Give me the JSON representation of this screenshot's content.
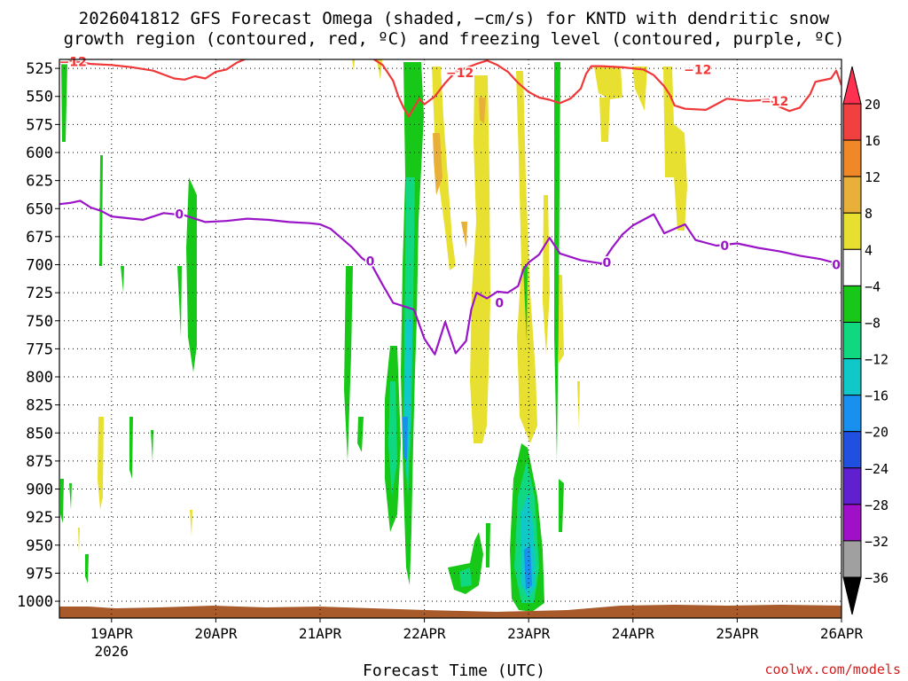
{
  "title": {
    "line1": "2026041812 GFS Forecast Omega (shaded, −cm/s) for KNTD with dendritic snow",
    "line2": "growth region (contoured, red, ºC) and freezing level (contoured, purple, ºC)"
  },
  "credit": "coolwx.com/models",
  "chart_data": {
    "type": "heatmap",
    "xlabel": "Forecast Time (UTC)",
    "ylabel": "",
    "x_ticks": [
      "19APR",
      "20APR",
      "21APR",
      "22APR",
      "23APR",
      "24APR",
      "25APR",
      "26APR"
    ],
    "x_sublabel": {
      "under": "19APR",
      "text": "2026"
    },
    "x_range_days": [
      18.5,
      26.0
    ],
    "y_ticks": [
      525,
      550,
      575,
      600,
      625,
      650,
      675,
      700,
      725,
      750,
      775,
      800,
      825,
      850,
      875,
      900,
      925,
      950,
      975,
      1000
    ],
    "y_range_hpa": [
      517,
      1015
    ],
    "grid": "dotted",
    "colorbar": {
      "labels": [
        "20",
        "16",
        "12",
        "8",
        "4",
        "−4",
        "−8",
        "−12",
        "−16",
        "−20",
        "−24",
        "−28",
        "−32",
        "−36"
      ],
      "colors": [
        "#ff3050",
        "#f04040",
        "#f08828",
        "#e8b038",
        "#e8e030",
        "#ffffff",
        "#18c818",
        "#10d880",
        "#10c8c8",
        "#1890f0",
        "#2050e0",
        "#6020d0",
        "#a010c8",
        "#a0a0a0",
        "#000000"
      ]
    },
    "series": [
      {
        "name": "dendritic snow growth region (-12 ºC)",
        "color": "#f03838",
        "contour_label": "−12",
        "points": [
          [
            18.5,
            521
          ],
          [
            18.6,
            518
          ],
          [
            18.8,
            521
          ],
          [
            19.0,
            522
          ],
          [
            19.2,
            524
          ],
          [
            19.4,
            527
          ],
          [
            19.6,
            534
          ],
          [
            19.7,
            535
          ],
          [
            19.8,
            532
          ],
          [
            19.9,
            534
          ],
          [
            20.0,
            528
          ],
          [
            20.1,
            526
          ],
          [
            20.2,
            520
          ],
          [
            20.3,
            516
          ],
          [
            21.5,
            516
          ],
          [
            21.6,
            522
          ],
          [
            21.7,
            536
          ],
          [
            21.75,
            550
          ],
          [
            21.8,
            560
          ],
          [
            21.85,
            568
          ],
          [
            21.9,
            560
          ],
          [
            21.95,
            552
          ],
          [
            22.0,
            557
          ],
          [
            22.1,
            550
          ],
          [
            22.2,
            538
          ],
          [
            22.3,
            528
          ],
          [
            22.5,
            521
          ],
          [
            22.6,
            518
          ],
          [
            22.7,
            522
          ],
          [
            22.8,
            528
          ],
          [
            22.9,
            538
          ],
          [
            23.0,
            546
          ],
          [
            23.1,
            551
          ],
          [
            23.2,
            553
          ],
          [
            23.3,
            556
          ],
          [
            23.4,
            552
          ],
          [
            23.5,
            543
          ],
          [
            23.55,
            530
          ],
          [
            23.6,
            523
          ],
          [
            23.7,
            523
          ],
          [
            23.9,
            524
          ],
          [
            24.1,
            526
          ],
          [
            24.2,
            531
          ],
          [
            24.3,
            541
          ],
          [
            24.35,
            548
          ],
          [
            24.4,
            558
          ],
          [
            24.5,
            561
          ],
          [
            24.7,
            562
          ],
          [
            24.8,
            557
          ],
          [
            24.9,
            552
          ],
          [
            25.1,
            554
          ],
          [
            25.3,
            553
          ],
          [
            25.4,
            559
          ],
          [
            25.5,
            563
          ],
          [
            25.6,
            560
          ],
          [
            25.7,
            548
          ],
          [
            25.75,
            537
          ],
          [
            25.8,
            536
          ],
          [
            25.9,
            534
          ],
          [
            25.95,
            527
          ],
          [
            26.0,
            540
          ]
        ]
      },
      {
        "name": "freezing level (0 ºC)",
        "color": "#9a14c8",
        "contour_label": "0",
        "points": [
          [
            18.5,
            646
          ],
          [
            18.6,
            645
          ],
          [
            18.7,
            643
          ],
          [
            18.8,
            649
          ],
          [
            18.9,
            652
          ],
          [
            19.0,
            657
          ],
          [
            19.1,
            658
          ],
          [
            19.3,
            660
          ],
          [
            19.5,
            654
          ],
          [
            19.7,
            656
          ],
          [
            19.9,
            662
          ],
          [
            20.1,
            661
          ],
          [
            20.3,
            659
          ],
          [
            20.5,
            660
          ],
          [
            20.7,
            662
          ],
          [
            20.9,
            663
          ],
          [
            21.0,
            664
          ],
          [
            21.1,
            668
          ],
          [
            21.2,
            676
          ],
          [
            21.3,
            684
          ],
          [
            21.4,
            694
          ],
          [
            21.5,
            701
          ],
          [
            21.6,
            718
          ],
          [
            21.7,
            734
          ],
          [
            21.8,
            737
          ],
          [
            21.9,
            740
          ],
          [
            22.0,
            766
          ],
          [
            22.1,
            780
          ],
          [
            22.2,
            751
          ],
          [
            22.3,
            779
          ],
          [
            22.4,
            768
          ],
          [
            22.45,
            740
          ],
          [
            22.5,
            725
          ],
          [
            22.6,
            730
          ],
          [
            22.7,
            724
          ],
          [
            22.8,
            725
          ],
          [
            22.9,
            719
          ],
          [
            22.95,
            704
          ],
          [
            23.0,
            698
          ],
          [
            23.1,
            691
          ],
          [
            23.2,
            676
          ],
          [
            23.3,
            690
          ],
          [
            23.5,
            696
          ],
          [
            23.7,
            699
          ],
          [
            23.8,
            685
          ],
          [
            23.9,
            673
          ],
          [
            24.0,
            665
          ],
          [
            24.1,
            660
          ],
          [
            24.2,
            655
          ],
          [
            24.3,
            672
          ],
          [
            24.4,
            668
          ],
          [
            24.5,
            664
          ],
          [
            24.6,
            678
          ],
          [
            24.8,
            683
          ],
          [
            25.0,
            681
          ],
          [
            25.2,
            685
          ],
          [
            25.4,
            688
          ],
          [
            25.6,
            692
          ],
          [
            25.8,
            695
          ],
          [
            26.0,
            700
          ]
        ]
      }
    ]
  }
}
